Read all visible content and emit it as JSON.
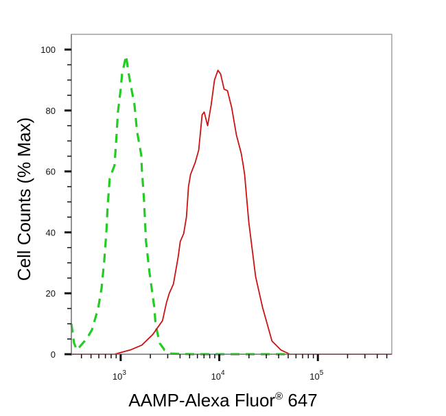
{
  "chart_data": {
    "type": "line",
    "title": "",
    "xlabel": "AAMP-Alexa Fluor® 647",
    "xlabel_parts": {
      "main": "AAMP-Alexa Fluor",
      "mark": "®",
      "tail": " 647"
    },
    "ylabel": "Cell Counts (% Max)",
    "xscale": "log",
    "xlim": [
      316,
      562000
    ],
    "ylim": [
      0,
      105
    ],
    "grid": false,
    "legend": "none",
    "y_ticks": [
      0,
      20,
      40,
      60,
      80,
      100
    ],
    "y_tick_labels": [
      "0",
      "20",
      "40",
      "60",
      "80",
      "100"
    ],
    "x_ticks": [
      1000,
      10000,
      100000
    ],
    "x_tick_labels": [
      {
        "base": "10",
        "exp": "3"
      },
      {
        "base": "10",
        "exp": "4"
      },
      {
        "base": "10",
        "exp": "5"
      }
    ],
    "series": [
      {
        "style": "dashed",
        "color": "#22cc22",
        "x": [
          316,
          337,
          359,
          450,
          511,
          590,
          640,
          681,
          714,
          738,
          774,
          866,
          908,
          938,
          1000,
          1032,
          1136,
          1192,
          1251,
          1377,
          1468,
          1615,
          1641,
          1721,
          1806,
          1957,
          2188,
          2261,
          2488,
          2783,
          3263,
          5270,
          50000
        ],
        "y": [
          10,
          3.6,
          1.4,
          5,
          8,
          15,
          21.6,
          30.6,
          39.6,
          48.6,
          57.7,
          62,
          72,
          79.5,
          87,
          92,
          98,
          93,
          89,
          82,
          73,
          65.5,
          60.6,
          51,
          37,
          27,
          15.5,
          9.7,
          3.6,
          1.4,
          0.2,
          0,
          0
        ]
      },
      {
        "style": "solid",
        "color": "#cc1111",
        "x": [
          316,
          866,
          1251,
          1641,
          2118,
          2655,
          2918,
          3112,
          3425,
          3831,
          4018,
          4353,
          4642,
          4871,
          5110,
          5710,
          6190,
          6700,
          7030,
          7620,
          8260,
          8940,
          9680,
          10320,
          11190,
          12110,
          13340,
          14920,
          16680,
          17500,
          18060,
          19900,
          23360,
          27400,
          34260,
          42170,
          51880,
          562000
        ],
        "y": [
          0,
          0,
          1.4,
          3,
          6.5,
          11,
          17,
          20,
          23,
          32,
          37,
          39.6,
          45,
          55,
          59,
          63,
          67,
          78.6,
          79.5,
          75,
          81.8,
          90,
          93.2,
          92,
          87,
          86.5,
          81,
          72,
          66,
          62,
          59,
          43.5,
          25.5,
          15.5,
          4.3,
          1.4,
          0,
          0
        ]
      }
    ]
  }
}
